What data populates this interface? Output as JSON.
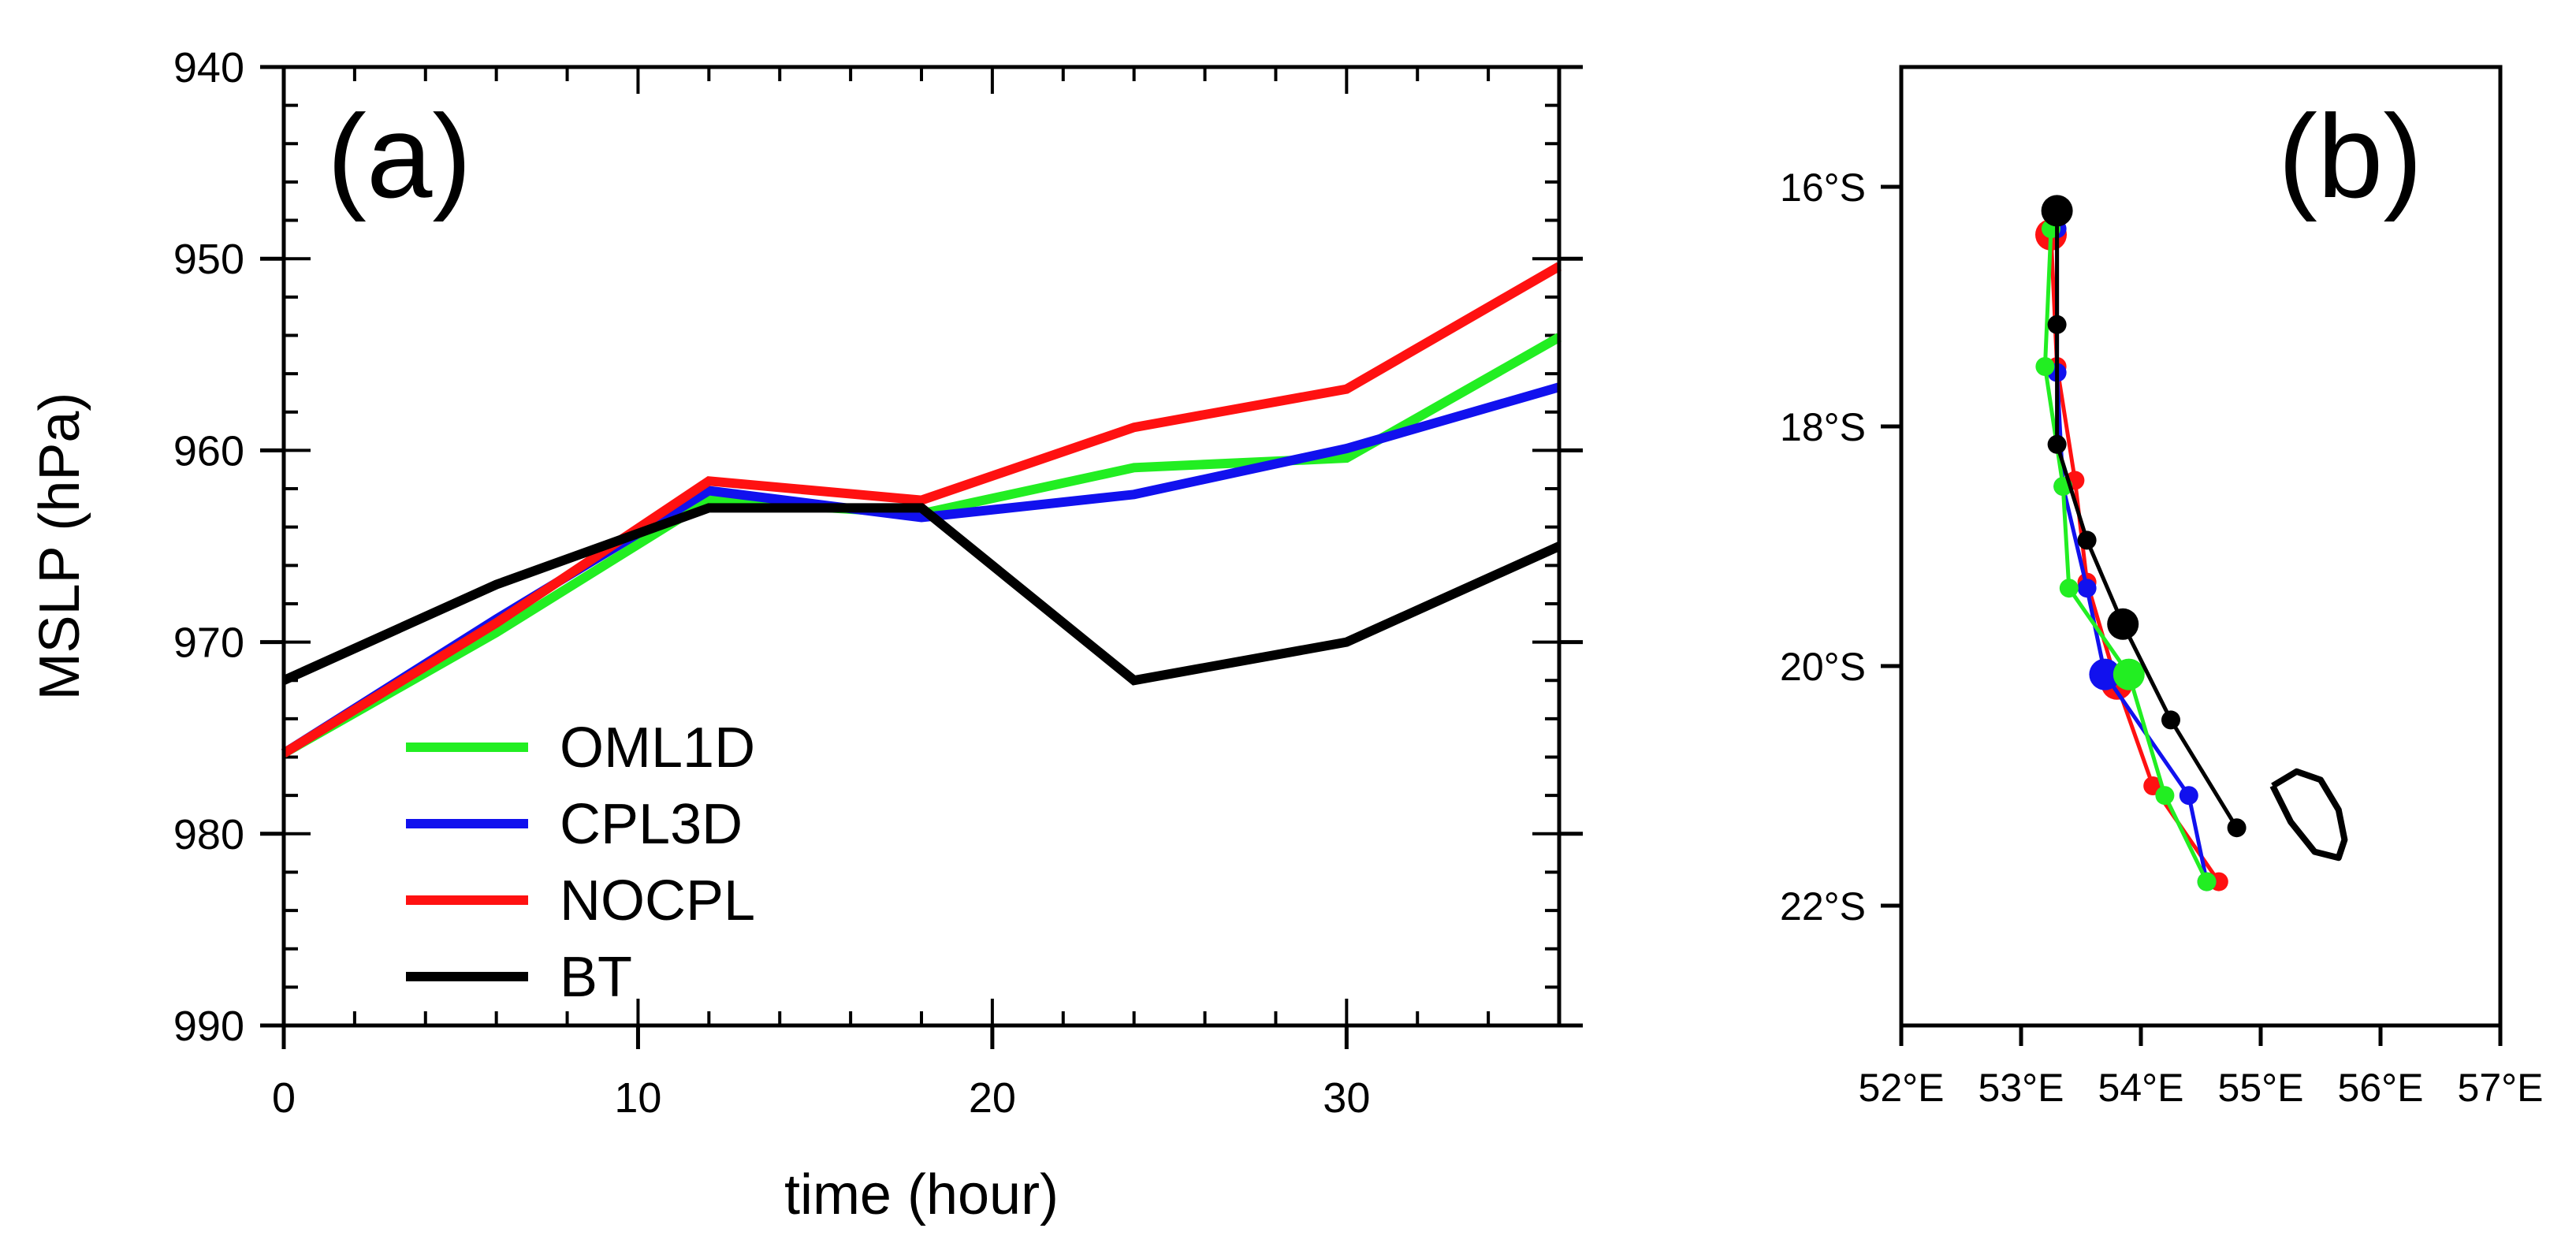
{
  "chart_data": [
    {
      "panel": "(a)",
      "type": "line",
      "xlabel": "time (hour)",
      "ylabel": "MSLP (hPa)",
      "xlim": [
        0,
        36
      ],
      "ylim": [
        990,
        940
      ],
      "y_reversed": true,
      "x_ticks": [
        0,
        10,
        20,
        30
      ],
      "x_tick_labels": [
        "0",
        "10",
        "20",
        "30"
      ],
      "y_ticks": [
        940,
        950,
        960,
        970,
        980,
        990
      ],
      "y_tick_labels": [
        "940",
        "950",
        "960",
        "970",
        "980",
        "990"
      ],
      "x": [
        0,
        6,
        12,
        18,
        24,
        30,
        36
      ],
      "legend_position": "bottom-left",
      "series": [
        {
          "name": "OML1D",
          "color": "#22ee22",
          "values": [
            975.8,
            969.5,
            962.6,
            963.3,
            960.9,
            960.4,
            954.1
          ]
        },
        {
          "name": "CPL3D",
          "color": "#1111ee",
          "values": [
            975.8,
            968.8,
            962.1,
            963.5,
            962.3,
            959.9,
            956.7
          ]
        },
        {
          "name": "NOCPL",
          "color": "#ff1111",
          "values": [
            975.8,
            969.0,
            961.6,
            962.6,
            958.8,
            956.8,
            950.4
          ]
        },
        {
          "name": "BT",
          "color": "#000000",
          "values": [
            972.0,
            967.0,
            963.0,
            963.0,
            972.0,
            970.0,
            965.0
          ]
        }
      ]
    },
    {
      "panel": "(b)",
      "type": "scatter",
      "xlim": [
        52,
        57
      ],
      "ylim": [
        -23,
        -15
      ],
      "x_ticks": [
        52,
        53,
        54,
        55,
        56,
        57
      ],
      "x_tick_labels": [
        "52°E",
        "53°E",
        "54°E",
        "55°E",
        "56°E",
        "57°E"
      ],
      "y_ticks": [
        -16,
        -18,
        -20,
        -22
      ],
      "y_tick_labels": [
        "16°S",
        "18°S",
        "20°S",
        "22°S"
      ],
      "series": [
        {
          "name": "NOCPL",
          "color": "#ff1111",
          "lon": [
            53.25,
            53.3,
            53.45,
            53.55,
            53.8,
            54.1,
            54.65
          ],
          "lat": [
            -16.4,
            -17.5,
            -18.45,
            -19.3,
            -20.15,
            -21.0,
            -21.8
          ],
          "large_marker_index": [
            0,
            4
          ]
        },
        {
          "name": "CPL3D",
          "color": "#1111ee",
          "lon": [
            53.3,
            53.3,
            53.35,
            53.55,
            53.7,
            54.4,
            54.55
          ],
          "lat": [
            -16.35,
            -17.55,
            -18.5,
            -19.35,
            -20.07,
            -21.08,
            -21.8
          ],
          "large_marker_index": [
            4
          ]
        },
        {
          "name": "OML1D",
          "color": "#22ee22",
          "lon": [
            53.25,
            53.2,
            53.35,
            53.4,
            53.9,
            54.2,
            54.55
          ],
          "lat": [
            -16.35,
            -17.5,
            -18.5,
            -19.35,
            -20.07,
            -21.08,
            -21.8
          ],
          "large_marker_index": [
            4
          ]
        },
        {
          "name": "BT",
          "color": "#000000",
          "lon": [
            53.3,
            53.3,
            53.3,
            53.55,
            53.85,
            54.25,
            54.8
          ],
          "lat": [
            -16.2,
            -17.15,
            -18.15,
            -18.95,
            -19.65,
            -20.45,
            -21.35
          ],
          "large_marker_index": [
            0,
            4
          ]
        }
      ],
      "contour_outline": {
        "lon": [
          55.1,
          55.3,
          55.5,
          55.65,
          55.7,
          55.65,
          55.45,
          55.25,
          55.1
        ],
        "lat": [
          -21.0,
          -20.88,
          -20.95,
          -21.2,
          -21.45,
          -21.6,
          -21.55,
          -21.3,
          -21.0
        ]
      }
    }
  ]
}
